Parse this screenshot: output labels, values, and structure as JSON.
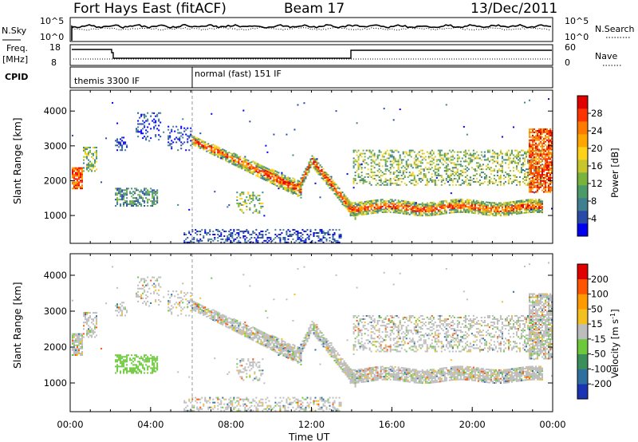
{
  "header": {
    "title": "Fort Hays East (fitACF)",
    "beam": "Beam 17",
    "date": "13/Dec/2011"
  },
  "top_panels": {
    "left_nsky": "N.Sky",
    "left_nsky_ticks": [
      "10^5",
      "10^0"
    ],
    "right_nsearch": "N.Search",
    "right_nsearch_ticks": [
      "10^5",
      "10^0"
    ],
    "left_freq_top": "Freq.",
    "left_freq_unit": "[MHz]",
    "left_freq_ticks": [
      "18",
      "8"
    ],
    "right_nave": "Nave",
    "right_nave_ticks": [
      "60",
      "0"
    ],
    "cpid_label": "CPID",
    "cpid_modes": [
      "themis 3300 IF",
      "normal (fast) 151 IF"
    ]
  },
  "chart_data": [
    {
      "type": "heatmap",
      "name": "power-panel",
      "ylabel": "Slant Range [km]",
      "xlabel": "",
      "xlim": [
        0,
        24
      ],
      "ylim": [
        200,
        4600
      ],
      "yticks": [
        1000,
        2000,
        3000,
        4000
      ],
      "colorbar": {
        "label": "Power [dB]",
        "ticks": [
          "4",
          "8",
          "12",
          "16",
          "20",
          "24",
          "28"
        ],
        "colors": [
          "#0000ee",
          "#2a4aa8",
          "#3f7f8f",
          "#4c9a68",
          "#7ab23e",
          "#c7c72d",
          "#ffd21a",
          "#ffa600",
          "#ff7a00",
          "#ff3300",
          "#e00000"
        ]
      },
      "features": [
        {
          "desc": "echo band",
          "t": [
            0.0,
            0.5
          ],
          "range": [
            1800,
            2400
          ]
        },
        {
          "desc": "descending echo",
          "t": [
            7.5,
            11.5
          ],
          "range": [
            2800,
            1700
          ]
        },
        {
          "desc": "v-shaped echo",
          "t": [
            11.5,
            14.0
          ],
          "range": [
            2600,
            1000
          ]
        },
        {
          "desc": "strong echo band",
          "t": [
            14.0,
            23.5
          ],
          "range": [
            1100,
            1400
          ]
        }
      ]
    },
    {
      "type": "heatmap",
      "name": "velocity-panel",
      "ylabel": "Slant Range [km]",
      "xlabel": "Time UT",
      "xlim": [
        0,
        24
      ],
      "ylim": [
        200,
        4600
      ],
      "xticks": [
        "00:00",
        "04:00",
        "08:00",
        "12:00",
        "16:00",
        "20:00",
        "00:00"
      ],
      "yticks": [
        1000,
        2000,
        3000,
        4000
      ],
      "colorbar": {
        "label": "Velocity [m s^-1]",
        "label_main": "Velocity [m s",
        "label_exp": "-1",
        "label_end": "]",
        "ticks": [
          "200",
          "100",
          "50",
          "15",
          "-15",
          "-50",
          "-100",
          "-200"
        ],
        "colors": [
          "#1a33b3",
          "#2f6fa0",
          "#3b8f5a",
          "#6ec83c",
          "#bdbdbd",
          "#f4c020",
          "#ff9a00",
          "#ff5500",
          "#e00000"
        ]
      }
    }
  ]
}
